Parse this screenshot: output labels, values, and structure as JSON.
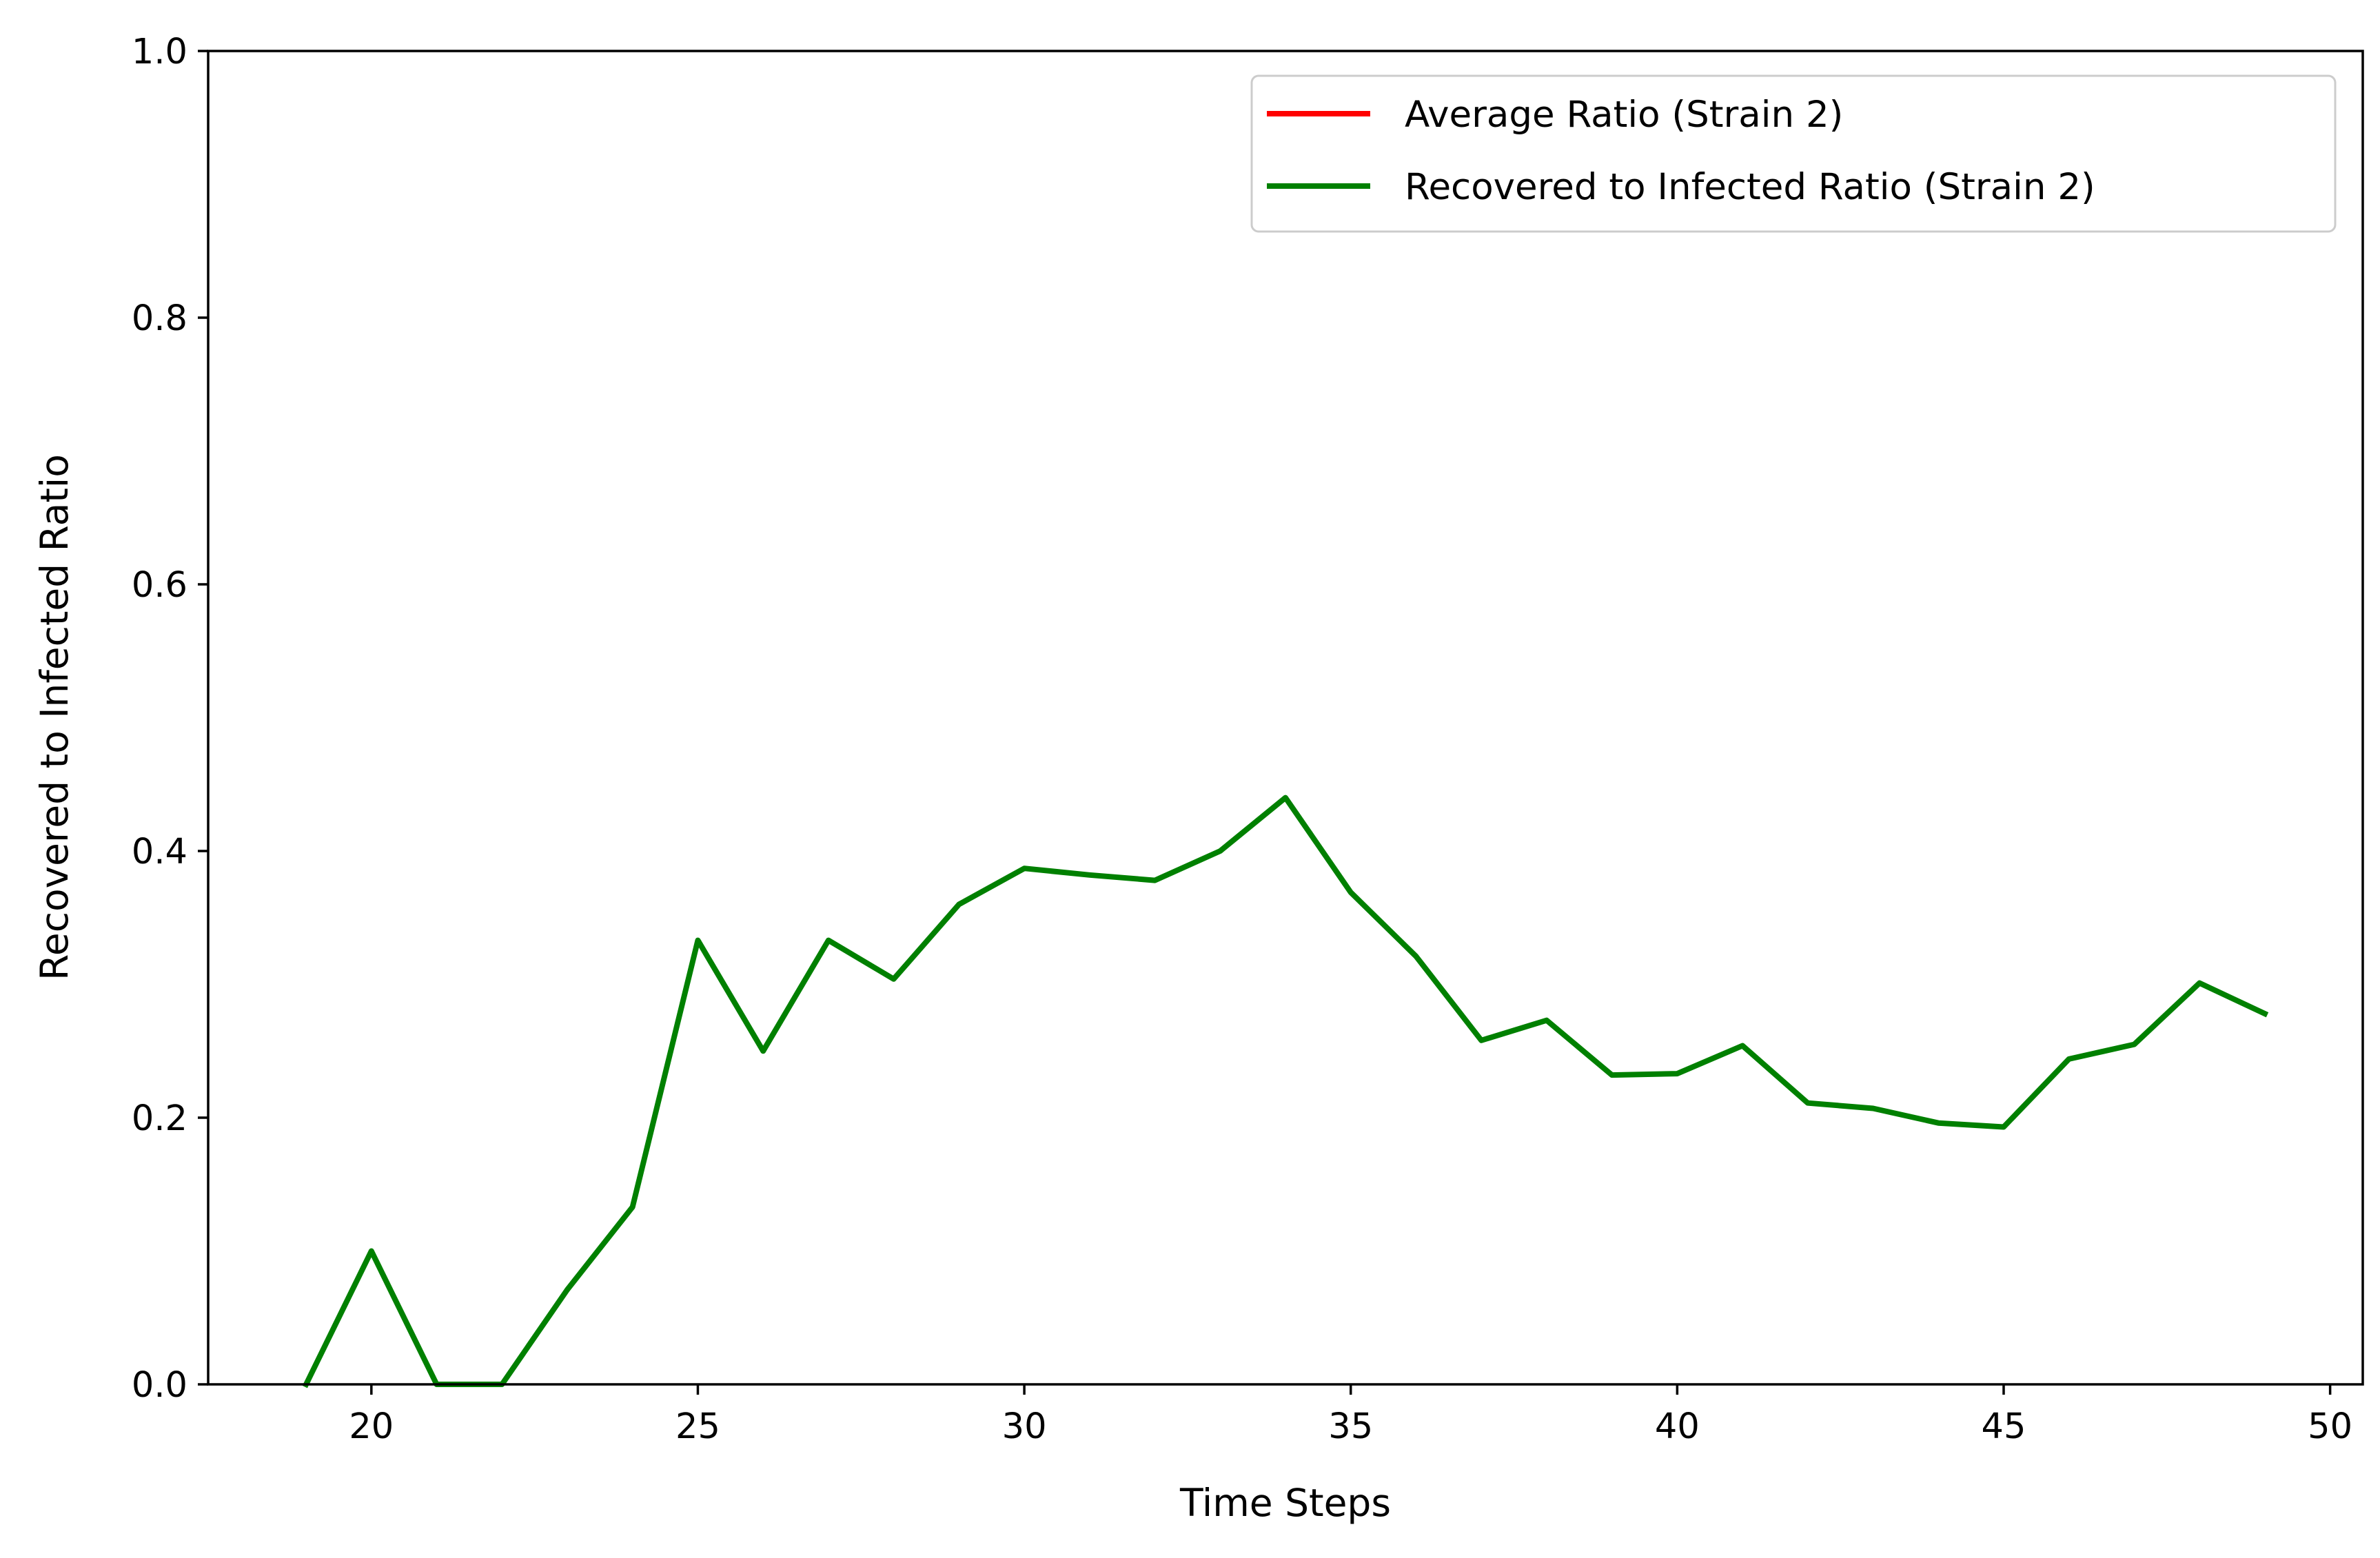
{
  "chart_data": {
    "type": "line",
    "title": "",
    "xlabel": "Time Steps",
    "ylabel": "Recovered to Infected Ratio",
    "xlim": [
      17.5,
      50.5
    ],
    "ylim": [
      0.0,
      1.0
    ],
    "x_ticks": [
      20,
      25,
      30,
      35,
      40,
      45,
      50
    ],
    "x_tick_labels": [
      "20",
      "25",
      "30",
      "35",
      "40",
      "45",
      "50"
    ],
    "y_ticks": [
      0.0,
      0.2,
      0.4,
      0.6,
      0.8,
      1.0
    ],
    "y_tick_labels": [
      "0.0",
      "0.2",
      "0.4",
      "0.6",
      "0.8",
      "1.0"
    ],
    "grid": false,
    "legend_position": "top-right",
    "series": [
      {
        "name": "Average Ratio (Strain 2)",
        "color": "#ff0000",
        "x": [],
        "values": []
      },
      {
        "name": "Recovered to Infected Ratio (Strain 2)",
        "color": "#008000",
        "x": [
          19,
          20,
          21,
          22,
          23,
          24,
          25,
          26,
          27,
          28,
          29,
          30,
          31,
          32,
          33,
          34,
          35,
          36,
          37,
          38,
          39,
          40,
          41,
          42,
          43,
          44,
          45,
          46,
          47,
          48,
          49
        ],
        "values": [
          0.0,
          0.1,
          0.0,
          0.0,
          0.071,
          0.133,
          0.333,
          0.25,
          0.333,
          0.304,
          0.36,
          0.387,
          0.382,
          0.378,
          0.4,
          0.44,
          0.369,
          0.321,
          0.258,
          0.273,
          0.232,
          0.233,
          0.254,
          0.211,
          0.207,
          0.196,
          0.193,
          0.244,
          0.255,
          0.301,
          0.278
        ]
      }
    ]
  }
}
